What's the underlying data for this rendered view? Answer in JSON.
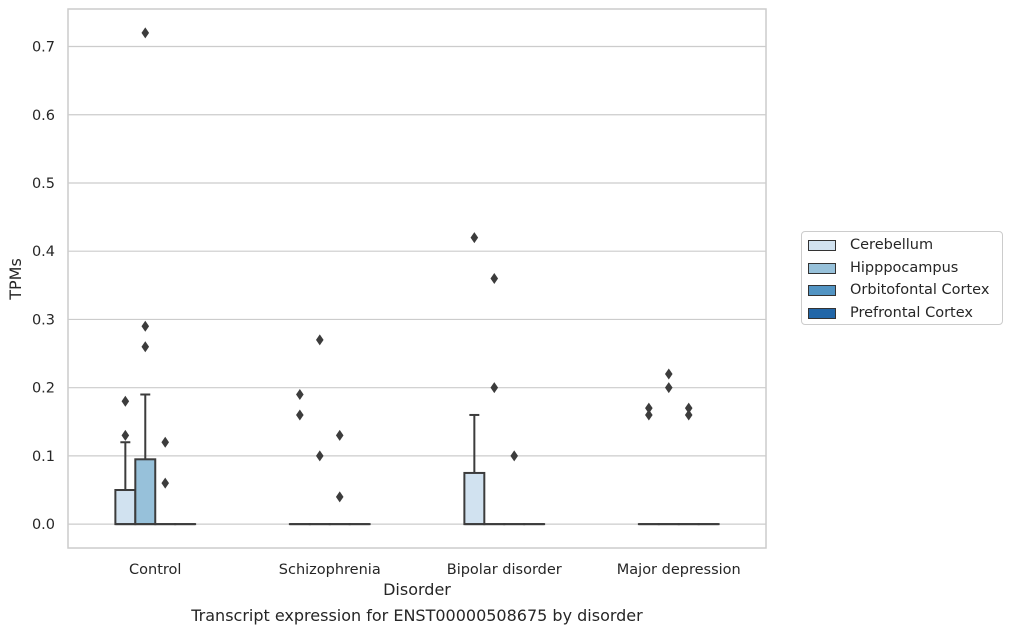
{
  "caption": "Transcript expression for ENST00000508675 by disorder",
  "legend": {
    "items": [
      {
        "label": "Cerebellum",
        "color": "#d1e2f0"
      },
      {
        "label": "Hipppocampus",
        "color": "#97c1da"
      },
      {
        "label": "Orbitofontal Cortex",
        "color": "#5294c3"
      },
      {
        "label": "Prefrontal Cortex",
        "color": "#2166a8"
      }
    ]
  },
  "chart_data": {
    "type": "boxplot",
    "xlabel": "Disorder",
    "ylabel": "TPMs",
    "ylim": [
      -0.035,
      0.755
    ],
    "yticks": [
      0.0,
      0.1,
      0.2,
      0.3,
      0.4,
      0.5,
      0.6,
      0.7
    ],
    "ytick_labels": [
      "0.0",
      "0.1",
      "0.2",
      "0.3",
      "0.4",
      "0.5",
      "0.6",
      "0.7"
    ],
    "grid": "horizontal",
    "legend_position": "right",
    "categories": [
      "Control",
      "Schizophrenia",
      "Bipolar disorder",
      "Major depression"
    ],
    "series": [
      {
        "name": "Cerebellum",
        "color": "#d1e2f0",
        "boxes": [
          {
            "q1": 0.0,
            "median": 0.0,
            "q3": 0.05,
            "whisker_low": 0.0,
            "whisker_high": 0.12,
            "outliers": [
              0.13,
              0.18
            ]
          },
          {
            "q1": 0.0,
            "median": 0.0,
            "q3": 0.0,
            "whisker_low": 0.0,
            "whisker_high": 0.0,
            "outliers": [
              0.16,
              0.19
            ]
          },
          {
            "q1": 0.0,
            "median": 0.0,
            "q3": 0.075,
            "whisker_low": 0.0,
            "whisker_high": 0.16,
            "outliers": [
              0.42
            ]
          },
          {
            "q1": 0.0,
            "median": 0.0,
            "q3": 0.0,
            "whisker_low": 0.0,
            "whisker_high": 0.0,
            "outliers": [
              0.16,
              0.17
            ]
          }
        ]
      },
      {
        "name": "Hipppocampus",
        "color": "#97c1da",
        "boxes": [
          {
            "q1": 0.0,
            "median": 0.0,
            "q3": 0.095,
            "whisker_low": 0.0,
            "whisker_high": 0.19,
            "outliers": [
              0.26,
              0.29,
              0.72
            ]
          },
          {
            "q1": 0.0,
            "median": 0.0,
            "q3": 0.0,
            "whisker_low": 0.0,
            "whisker_high": 0.0,
            "outliers": [
              0.1,
              0.27
            ]
          },
          {
            "q1": 0.0,
            "median": 0.0,
            "q3": 0.0,
            "whisker_low": 0.0,
            "whisker_high": 0.0,
            "outliers": [
              0.2,
              0.36
            ]
          },
          {
            "q1": 0.0,
            "median": 0.0,
            "q3": 0.0,
            "whisker_low": 0.0,
            "whisker_high": 0.0,
            "outliers": [
              0.2,
              0.22
            ]
          }
        ]
      },
      {
        "name": "Orbitofontal Cortex",
        "color": "#5294c3",
        "boxes": [
          {
            "q1": 0.0,
            "median": 0.0,
            "q3": 0.0,
            "whisker_low": 0.0,
            "whisker_high": 0.0,
            "outliers": [
              0.06,
              0.12
            ]
          },
          {
            "q1": 0.0,
            "median": 0.0,
            "q3": 0.0,
            "whisker_low": 0.0,
            "whisker_high": 0.0,
            "outliers": [
              0.04,
              0.13
            ]
          },
          {
            "q1": 0.0,
            "median": 0.0,
            "q3": 0.0,
            "whisker_low": 0.0,
            "whisker_high": 0.0,
            "outliers": [
              0.1
            ]
          },
          {
            "q1": 0.0,
            "median": 0.0,
            "q3": 0.0,
            "whisker_low": 0.0,
            "whisker_high": 0.0,
            "outliers": [
              0.16,
              0.17
            ]
          }
        ]
      },
      {
        "name": "Prefrontal Cortex",
        "color": "#2166a8",
        "boxes": [
          {
            "q1": 0.0,
            "median": 0.0,
            "q3": 0.0,
            "whisker_low": 0.0,
            "whisker_high": 0.0,
            "outliers": []
          },
          {
            "q1": 0.0,
            "median": 0.0,
            "q3": 0.0,
            "whisker_low": 0.0,
            "whisker_high": 0.0,
            "outliers": []
          },
          {
            "q1": 0.0,
            "median": 0.0,
            "q3": 0.0,
            "whisker_low": 0.0,
            "whisker_high": 0.0,
            "outliers": []
          },
          {
            "q1": 0.0,
            "median": 0.0,
            "q3": 0.0,
            "whisker_low": 0.0,
            "whisker_high": 0.0,
            "outliers": []
          }
        ]
      }
    ]
  }
}
